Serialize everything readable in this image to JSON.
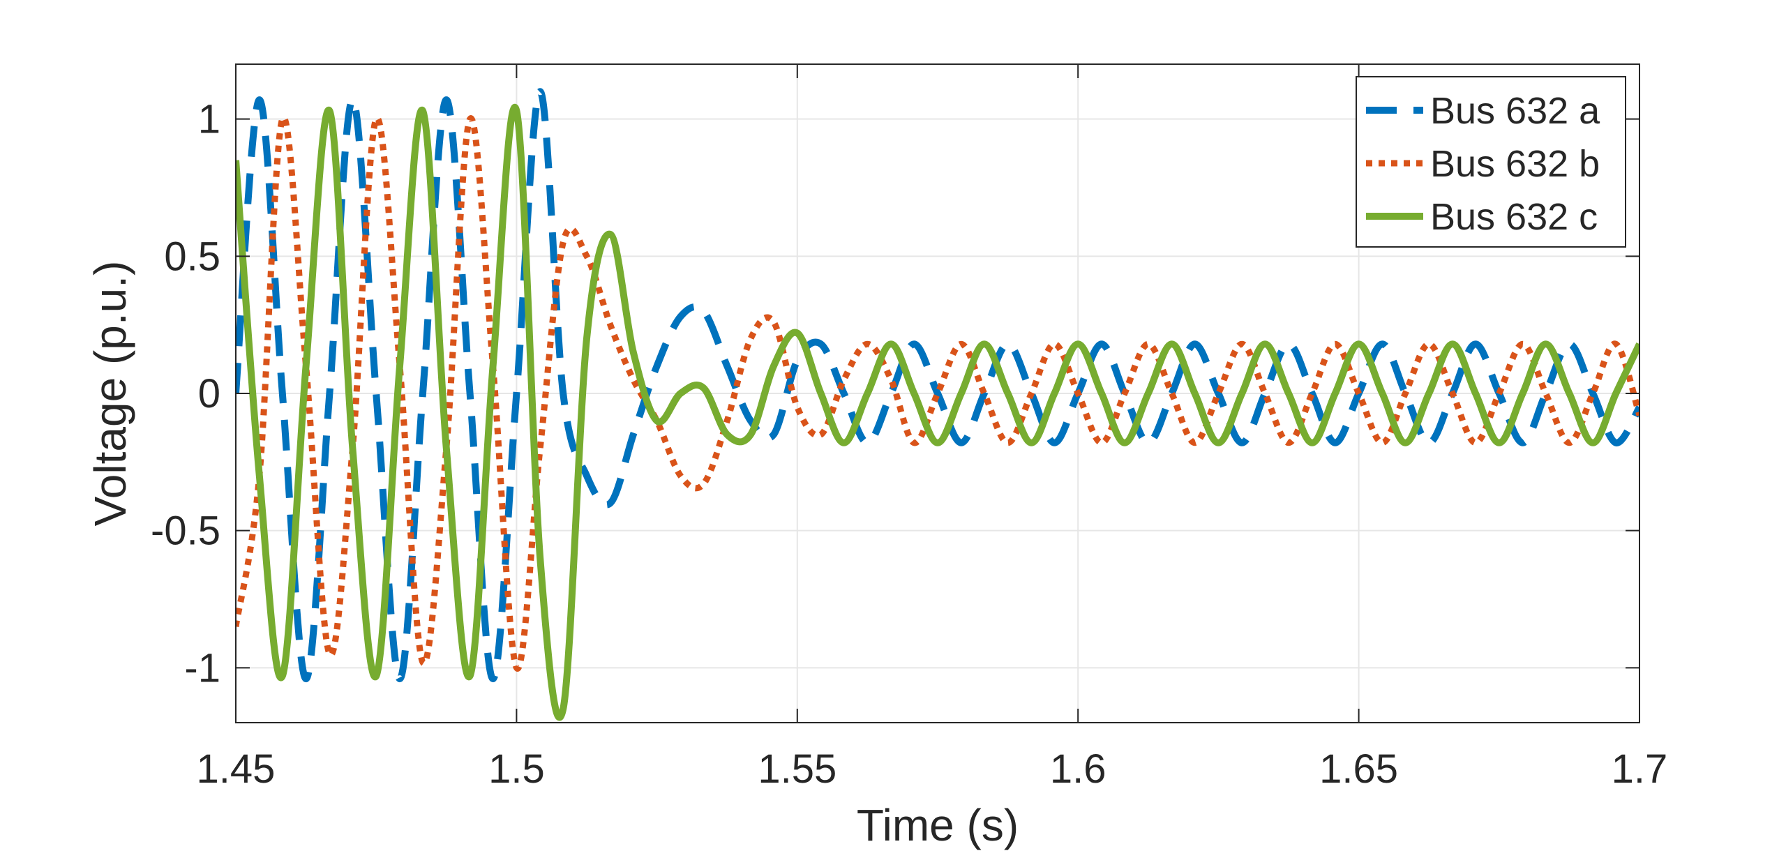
{
  "chart_data": {
    "type": "line",
    "title": "",
    "xlabel": "Time (s)",
    "ylabel": "Voltage (p.u.)",
    "xlim": [
      1.45,
      1.7
    ],
    "ylim": [
      -1.2,
      1.2
    ],
    "xticks": [
      1.45,
      1.5,
      1.55,
      1.6,
      1.65,
      1.7
    ],
    "xtick_labels": [
      "1.45",
      "1.5",
      "1.55",
      "1.6",
      "1.65",
      "1.7"
    ],
    "yticks": [
      -1,
      -0.5,
      0,
      0.5,
      1
    ],
    "ytick_labels": [
      "-1",
      "-0.5",
      "0",
      "0.5",
      "1"
    ],
    "grid": true,
    "legend_position": "top-right",
    "series": [
      {
        "name": "Bus 632 a",
        "color": "#0072BD",
        "line_style": "dashed",
        "x": [
          1.45,
          1.4542,
          1.4583,
          1.4625,
          1.4667,
          1.4708,
          1.475,
          1.4792,
          1.4833,
          1.4875,
          1.4917,
          1.4958,
          1.5,
          1.5042,
          1.5083,
          1.5125,
          1.5167,
          1.5208,
          1.525,
          1.5292,
          1.5333,
          1.5375,
          1.5417,
          1.5458,
          1.55,
          1.5542,
          1.5583,
          1.5625,
          1.5667,
          1.5708,
          1.575,
          1.5792,
          1.5833,
          1.5875,
          1.5917,
          1.5958,
          1.6,
          1.6042,
          1.6083,
          1.6125,
          1.6167,
          1.6208,
          1.625,
          1.6292,
          1.6333,
          1.6375,
          1.6417,
          1.6458,
          1.65,
          1.6542,
          1.6583,
          1.6625,
          1.6667,
          1.6708,
          1.675,
          1.6792,
          1.6833,
          1.6875,
          1.6917,
          1.6958,
          1.7
        ],
        "y": [
          0.0,
          1.07,
          0.0,
          -1.04,
          0.0,
          1.07,
          0.0,
          -1.04,
          0.0,
          1.07,
          0.0,
          -1.04,
          0.0,
          1.1,
          0.0,
          -0.3,
          -0.4,
          -0.15,
          0.1,
          0.28,
          0.3,
          0.1,
          -0.1,
          -0.15,
          0.12,
          0.18,
          0.0,
          -0.18,
          0.0,
          0.18,
          0.0,
          -0.18,
          0.0,
          0.18,
          0.0,
          -0.18,
          0.0,
          0.18,
          0.0,
          -0.18,
          0.0,
          0.18,
          0.0,
          -0.18,
          0.0,
          0.18,
          0.0,
          -0.18,
          0.0,
          0.18,
          0.0,
          -0.18,
          0.0,
          0.18,
          0.0,
          -0.18,
          0.0,
          0.18,
          0.0,
          -0.18,
          -0.05
        ]
      },
      {
        "name": "Bus 632 b",
        "color": "#D95319",
        "line_style": "dotted",
        "x": [
          1.45,
          1.4542,
          1.4583,
          1.4625,
          1.4667,
          1.4708,
          1.475,
          1.4792,
          1.4833,
          1.4875,
          1.4917,
          1.4958,
          1.5,
          1.5042,
          1.5083,
          1.5125,
          1.5167,
          1.5208,
          1.525,
          1.5292,
          1.5333,
          1.5375,
          1.5417,
          1.5458,
          1.55,
          1.5542,
          1.5583,
          1.5625,
          1.5667,
          1.5708,
          1.575,
          1.5792,
          1.5833,
          1.5875,
          1.5917,
          1.5958,
          1.6,
          1.6042,
          1.6083,
          1.6125,
          1.6167,
          1.6208,
          1.625,
          1.6292,
          1.6333,
          1.6375,
          1.6417,
          1.6458,
          1.65,
          1.6542,
          1.6583,
          1.6625,
          1.6667,
          1.6708,
          1.675,
          1.6792,
          1.6833,
          1.6875,
          1.6917,
          1.6958,
          1.7
        ],
        "y": [
          -0.85,
          -0.3,
          1.0,
          0.1,
          -0.95,
          -0.2,
          1.0,
          0.1,
          -0.98,
          -0.2,
          1.0,
          0.1,
          -1.0,
          -0.2,
          0.55,
          0.5,
          0.25,
          0.05,
          -0.1,
          -0.3,
          -0.33,
          -0.1,
          0.2,
          0.26,
          -0.05,
          -0.15,
          0.05,
          0.18,
          0.05,
          -0.18,
          0.0,
          0.18,
          0.0,
          -0.18,
          0.0,
          0.18,
          0.0,
          -0.18,
          0.0,
          0.18,
          0.0,
          -0.18,
          0.0,
          0.18,
          0.0,
          -0.18,
          0.0,
          0.18,
          0.0,
          -0.18,
          0.0,
          0.18,
          0.0,
          -0.18,
          0.0,
          0.18,
          0.0,
          -0.18,
          0.0,
          0.18,
          -0.08
        ]
      },
      {
        "name": "Bus 632 c",
        "color": "#77AC30",
        "line_style": "solid",
        "x": [
          1.45,
          1.4542,
          1.4583,
          1.4625,
          1.4667,
          1.4708,
          1.475,
          1.4792,
          1.4833,
          1.4875,
          1.4917,
          1.4958,
          1.5,
          1.5042,
          1.5083,
          1.5125,
          1.5167,
          1.5208,
          1.525,
          1.5292,
          1.5333,
          1.5375,
          1.5417,
          1.5458,
          1.55,
          1.5542,
          1.5583,
          1.5625,
          1.5667,
          1.5708,
          1.575,
          1.5792,
          1.5833,
          1.5875,
          1.5917,
          1.5958,
          1.6,
          1.6042,
          1.6083,
          1.6125,
          1.6167,
          1.6208,
          1.625,
          1.6292,
          1.6333,
          1.6375,
          1.6417,
          1.6458,
          1.65,
          1.6542,
          1.6583,
          1.6625,
          1.6667,
          1.6708,
          1.675,
          1.6792,
          1.6833,
          1.6875,
          1.6917,
          1.6958,
          1.7
        ],
        "y": [
          0.85,
          -0.3,
          -1.03,
          0.1,
          1.03,
          -0.2,
          -1.03,
          0.1,
          1.03,
          -0.2,
          -1.03,
          0.1,
          1.03,
          -0.6,
          -1.15,
          0.2,
          0.58,
          0.15,
          -0.1,
          0.0,
          0.02,
          -0.15,
          -0.15,
          0.1,
          0.22,
          0.0,
          -0.18,
          0.0,
          0.18,
          0.0,
          -0.18,
          0.0,
          0.18,
          0.0,
          -0.18,
          0.0,
          0.18,
          0.0,
          -0.18,
          0.0,
          0.18,
          0.0,
          -0.18,
          0.0,
          0.18,
          0.0,
          -0.18,
          0.0,
          0.18,
          0.0,
          -0.18,
          0.0,
          0.18,
          0.0,
          -0.18,
          0.0,
          0.18,
          0.0,
          -0.18,
          0.0,
          0.18
        ]
      }
    ]
  }
}
